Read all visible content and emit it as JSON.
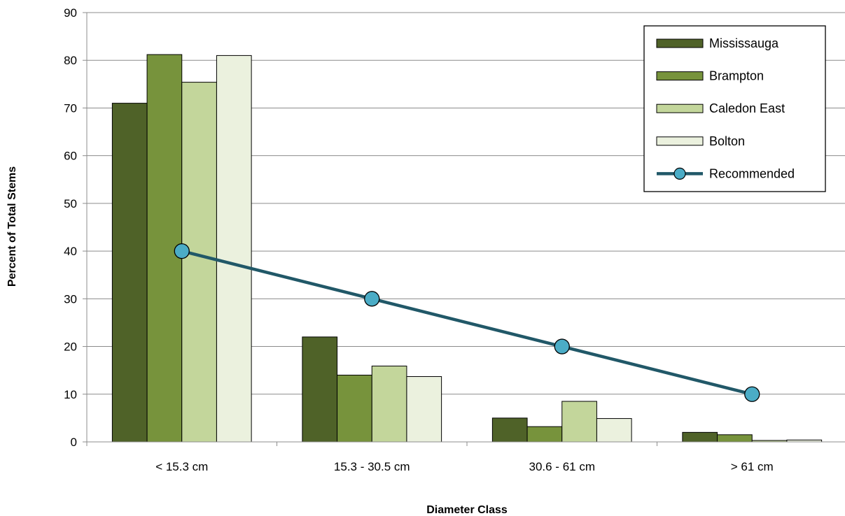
{
  "chart_data": {
    "type": "bar",
    "title": "",
    "xlabel": "Diameter Class",
    "ylabel": "Percent of Total Stems",
    "ylim": [
      0,
      90
    ],
    "yticks": [
      0,
      10,
      20,
      30,
      40,
      50,
      60,
      70,
      80,
      90
    ],
    "grid": true,
    "legend_position": "top-right",
    "categories": [
      "< 15.3 cm",
      "15.3 - 30.5 cm",
      "30.6 - 61 cm",
      "> 61 cm"
    ],
    "series": [
      {
        "name": "Mississauga",
        "type": "bar",
        "color": "#4f6228",
        "values": [
          71,
          22,
          5,
          2
        ]
      },
      {
        "name": "Brampton",
        "type": "bar",
        "color": "#77933c",
        "values": [
          81.2,
          14,
          3.2,
          1.5
        ]
      },
      {
        "name": "Caledon East",
        "type": "bar",
        "color": "#c3d69b",
        "values": [
          75.4,
          15.9,
          8.5,
          0.3
        ]
      },
      {
        "name": "Bolton",
        "type": "bar",
        "color": "#ebf1de",
        "values": [
          81,
          13.7,
          4.9,
          0.4
        ]
      },
      {
        "name": "Recommended",
        "type": "line",
        "color": "#215868",
        "marker_color": "#4bacc6",
        "values": [
          40,
          30,
          20,
          10
        ]
      }
    ]
  }
}
